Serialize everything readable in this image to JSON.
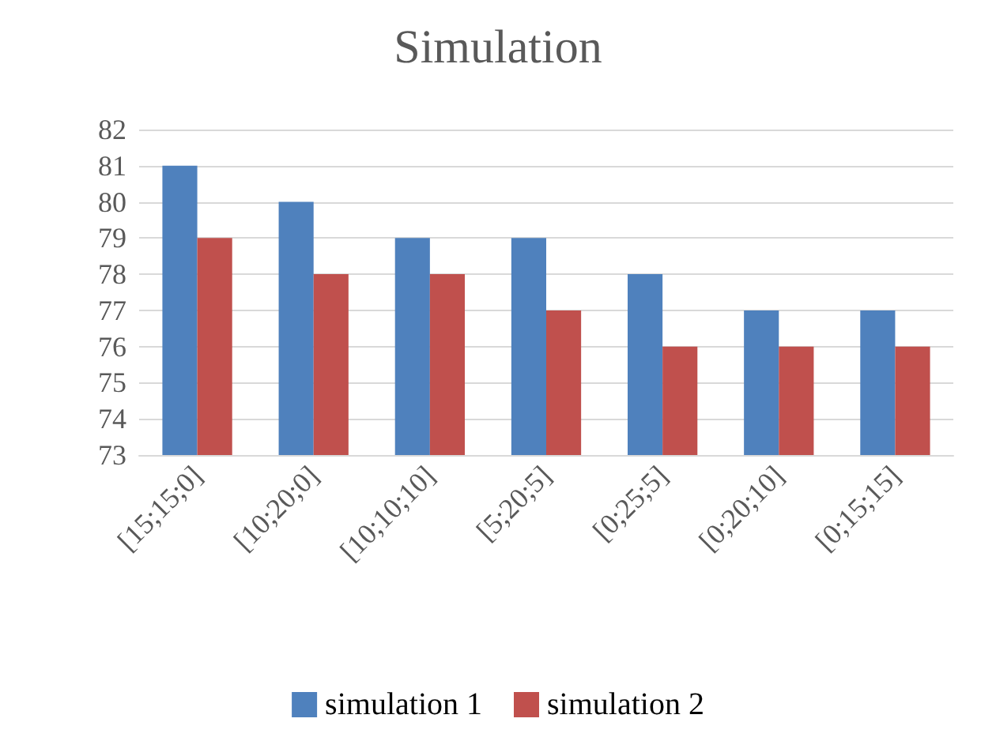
{
  "chart_data": {
    "type": "bar",
    "title": "Simulation",
    "categories": [
      "[15;15;0]",
      "[10;20;0]",
      "[10;10;10]",
      "[5;20;5]",
      "[0;25;5]",
      "[0;20;10]",
      "[0;15;15]"
    ],
    "series": [
      {
        "name": "simulation 1",
        "color": "#4f81bd",
        "values": [
          81,
          80,
          79,
          79,
          78,
          77,
          77
        ]
      },
      {
        "name": "simulation 2",
        "color": "#c0504d",
        "values": [
          79,
          78,
          78,
          77,
          76,
          76,
          76
        ]
      }
    ],
    "ylim": [
      73,
      82
    ],
    "yticks": [
      73,
      74,
      75,
      76,
      77,
      78,
      79,
      80,
      81,
      82
    ],
    "grid": "y",
    "legend": "bottom"
  }
}
